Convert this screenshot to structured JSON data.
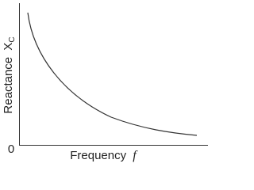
{
  "axes": {
    "y_label": {
      "text": "Reactance",
      "symbol": "X",
      "subscript": "C"
    },
    "x_label": {
      "text": "Frequency",
      "symbol": "f"
    },
    "origin": "0"
  }
}
